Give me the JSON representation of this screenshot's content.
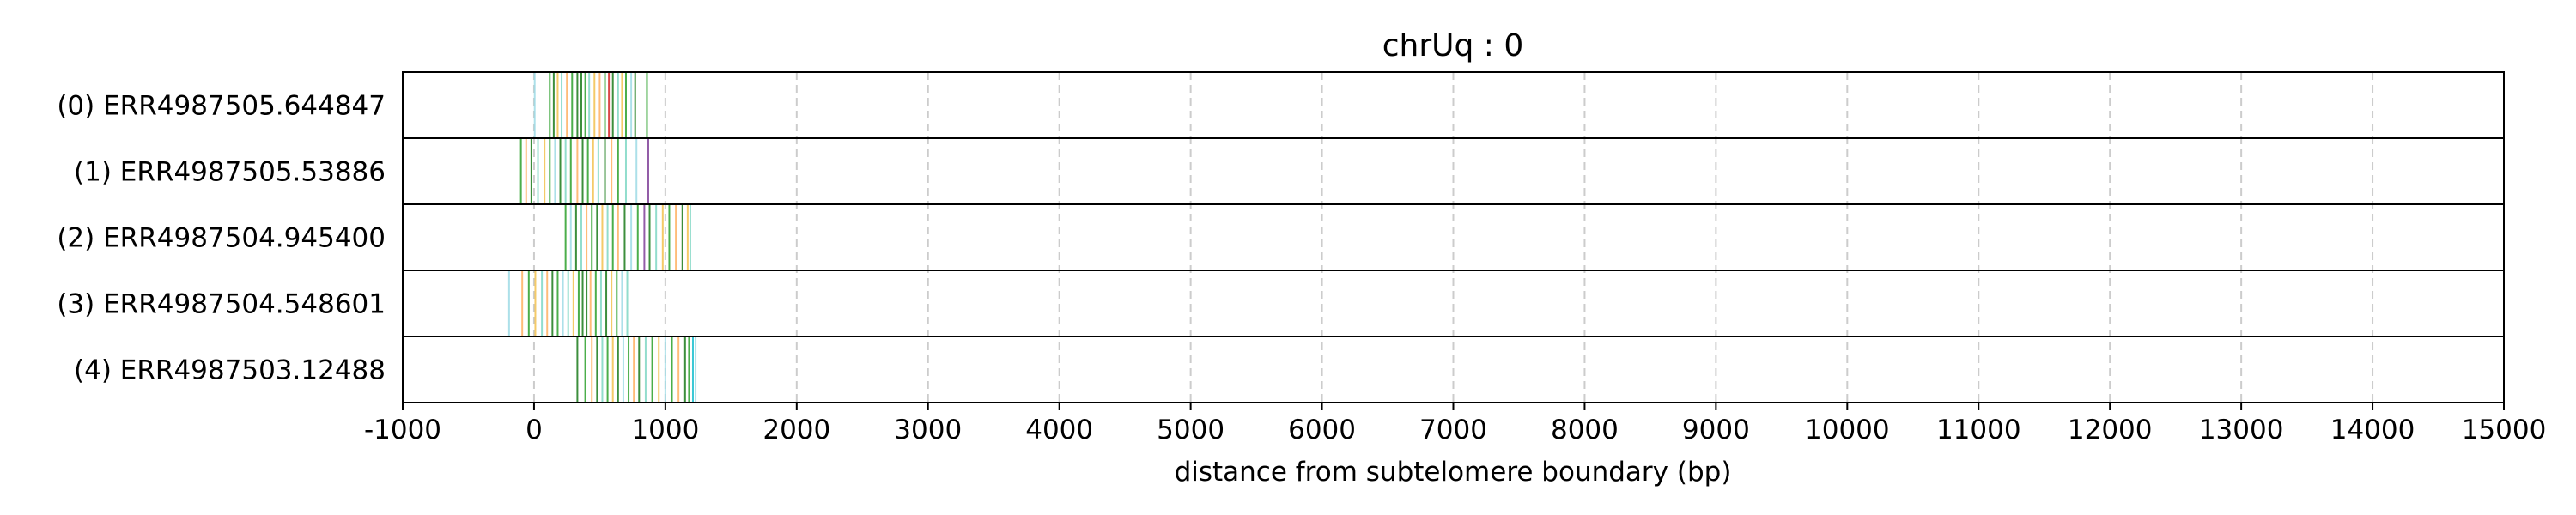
{
  "chart_data": {
    "type": "read-tick-track",
    "title": "chrUq : 0",
    "xlabel": "distance from subtelomere boundary (bp)",
    "ylabel": "",
    "xlim": [
      -1000,
      15000
    ],
    "xticks": [
      -1000,
      0,
      1000,
      2000,
      3000,
      4000,
      5000,
      6000,
      7000,
      8000,
      9000,
      10000,
      11000,
      12000,
      13000,
      14000,
      15000
    ],
    "xtick_labels": [
      "-1000",
      "0",
      "1000",
      "2000",
      "3000",
      "4000",
      "5000",
      "6000",
      "7000",
      "8000",
      "9000",
      "10000",
      "11000",
      "12000",
      "13000",
      "14000",
      "15000"
    ],
    "grid": "vertical dashed at x ticks",
    "legend": "none",
    "colors": {
      "frame": "#000000",
      "grid": "#cccccc",
      "tick_palette": [
        "#1a7a1a",
        "#2ca02c",
        "#7fd7c4",
        "#9edae5",
        "#ffb061",
        "#f2c14e",
        "#aec7e8",
        "#7f3f98",
        "#d62728",
        "#17becf"
      ]
    },
    "rows": [
      {
        "label": "(0) ERR4987505.644847",
        "ticks": [
          {
            "x": 5,
            "c": 3
          },
          {
            "x": 120,
            "c": 1
          },
          {
            "x": 150,
            "c": 0
          },
          {
            "x": 180,
            "c": 5
          },
          {
            "x": 210,
            "c": 2
          },
          {
            "x": 250,
            "c": 4
          },
          {
            "x": 290,
            "c": 1
          },
          {
            "x": 330,
            "c": 0
          },
          {
            "x": 360,
            "c": 0
          },
          {
            "x": 390,
            "c": 1
          },
          {
            "x": 420,
            "c": 2
          },
          {
            "x": 460,
            "c": 5
          },
          {
            "x": 500,
            "c": 4
          },
          {
            "x": 540,
            "c": 1
          },
          {
            "x": 570,
            "c": 8
          },
          {
            "x": 600,
            "c": 0
          },
          {
            "x": 640,
            "c": 2
          },
          {
            "x": 670,
            "c": 5
          },
          {
            "x": 700,
            "c": 1
          },
          {
            "x": 740,
            "c": 3
          },
          {
            "x": 770,
            "c": 0
          },
          {
            "x": 860,
            "c": 1
          }
        ]
      },
      {
        "label": "(1) ERR4987505.53886",
        "ticks": [
          {
            "x": -100,
            "c": 1
          },
          {
            "x": -60,
            "c": 4
          },
          {
            "x": -20,
            "c": 0
          },
          {
            "x": 30,
            "c": 2
          },
          {
            "x": 80,
            "c": 5
          },
          {
            "x": 120,
            "c": 1
          },
          {
            "x": 160,
            "c": 3
          },
          {
            "x": 200,
            "c": 0
          },
          {
            "x": 240,
            "c": 2
          },
          {
            "x": 280,
            "c": 1
          },
          {
            "x": 330,
            "c": 4
          },
          {
            "x": 370,
            "c": 0
          },
          {
            "x": 410,
            "c": 1
          },
          {
            "x": 450,
            "c": 5
          },
          {
            "x": 490,
            "c": 2
          },
          {
            "x": 540,
            "c": 0
          },
          {
            "x": 590,
            "c": 4
          },
          {
            "x": 640,
            "c": 1
          },
          {
            "x": 700,
            "c": 2
          },
          {
            "x": 780,
            "c": 3
          },
          {
            "x": 870,
            "c": 7
          }
        ]
      },
      {
        "label": "(2) ERR4987504.945400",
        "ticks": [
          {
            "x": 240,
            "c": 1
          },
          {
            "x": 280,
            "c": 3
          },
          {
            "x": 320,
            "c": 0
          },
          {
            "x": 360,
            "c": 2
          },
          {
            "x": 400,
            "c": 4
          },
          {
            "x": 440,
            "c": 1
          },
          {
            "x": 480,
            "c": 0
          },
          {
            "x": 520,
            "c": 5
          },
          {
            "x": 560,
            "c": 2
          },
          {
            "x": 600,
            "c": 1
          },
          {
            "x": 640,
            "c": 4
          },
          {
            "x": 690,
            "c": 0
          },
          {
            "x": 740,
            "c": 3
          },
          {
            "x": 790,
            "c": 1
          },
          {
            "x": 840,
            "c": 7
          },
          {
            "x": 880,
            "c": 0
          },
          {
            "x": 930,
            "c": 2
          },
          {
            "x": 980,
            "c": 5
          },
          {
            "x": 1030,
            "c": 1
          },
          {
            "x": 1080,
            "c": 4
          },
          {
            "x": 1130,
            "c": 0
          },
          {
            "x": 1170,
            "c": 5
          },
          {
            "x": 1190,
            "c": 2
          }
        ]
      },
      {
        "label": "(3) ERR4987504.548601",
        "ticks": [
          {
            "x": -190,
            "c": 3
          },
          {
            "x": -90,
            "c": 4
          },
          {
            "x": -40,
            "c": 1
          },
          {
            "x": 10,
            "c": 5
          },
          {
            "x": 60,
            "c": 2
          },
          {
            "x": 100,
            "c": 4
          },
          {
            "x": 140,
            "c": 0
          },
          {
            "x": 180,
            "c": 1
          },
          {
            "x": 220,
            "c": 3
          },
          {
            "x": 260,
            "c": 2
          },
          {
            "x": 300,
            "c": 5
          },
          {
            "x": 340,
            "c": 1
          },
          {
            "x": 370,
            "c": 0
          },
          {
            "x": 400,
            "c": 0
          },
          {
            "x": 430,
            "c": 4
          },
          {
            "x": 470,
            "c": 1
          },
          {
            "x": 510,
            "c": 2
          },
          {
            "x": 550,
            "c": 0
          },
          {
            "x": 590,
            "c": 5
          },
          {
            "x": 630,
            "c": 1
          },
          {
            "x": 670,
            "c": 3
          },
          {
            "x": 710,
            "c": 2
          }
        ]
      },
      {
        "label": "(4) ERR4987503.12488",
        "ticks": [
          {
            "x": 330,
            "c": 0
          },
          {
            "x": 390,
            "c": 1
          },
          {
            "x": 440,
            "c": 4
          },
          {
            "x": 480,
            "c": 0
          },
          {
            "x": 520,
            "c": 2
          },
          {
            "x": 560,
            "c": 1
          },
          {
            "x": 600,
            "c": 5
          },
          {
            "x": 640,
            "c": 0
          },
          {
            "x": 680,
            "c": 3
          },
          {
            "x": 720,
            "c": 1
          },
          {
            "x": 760,
            "c": 4
          },
          {
            "x": 800,
            "c": 0
          },
          {
            "x": 850,
            "c": 2
          },
          {
            "x": 900,
            "c": 1
          },
          {
            "x": 950,
            "c": 5
          },
          {
            "x": 1000,
            "c": 3
          },
          {
            "x": 1050,
            "c": 1
          },
          {
            "x": 1100,
            "c": 4
          },
          {
            "x": 1150,
            "c": 0
          },
          {
            "x": 1180,
            "c": 1
          },
          {
            "x": 1210,
            "c": 9
          },
          {
            "x": 1230,
            "c": 3
          }
        ]
      }
    ]
  }
}
